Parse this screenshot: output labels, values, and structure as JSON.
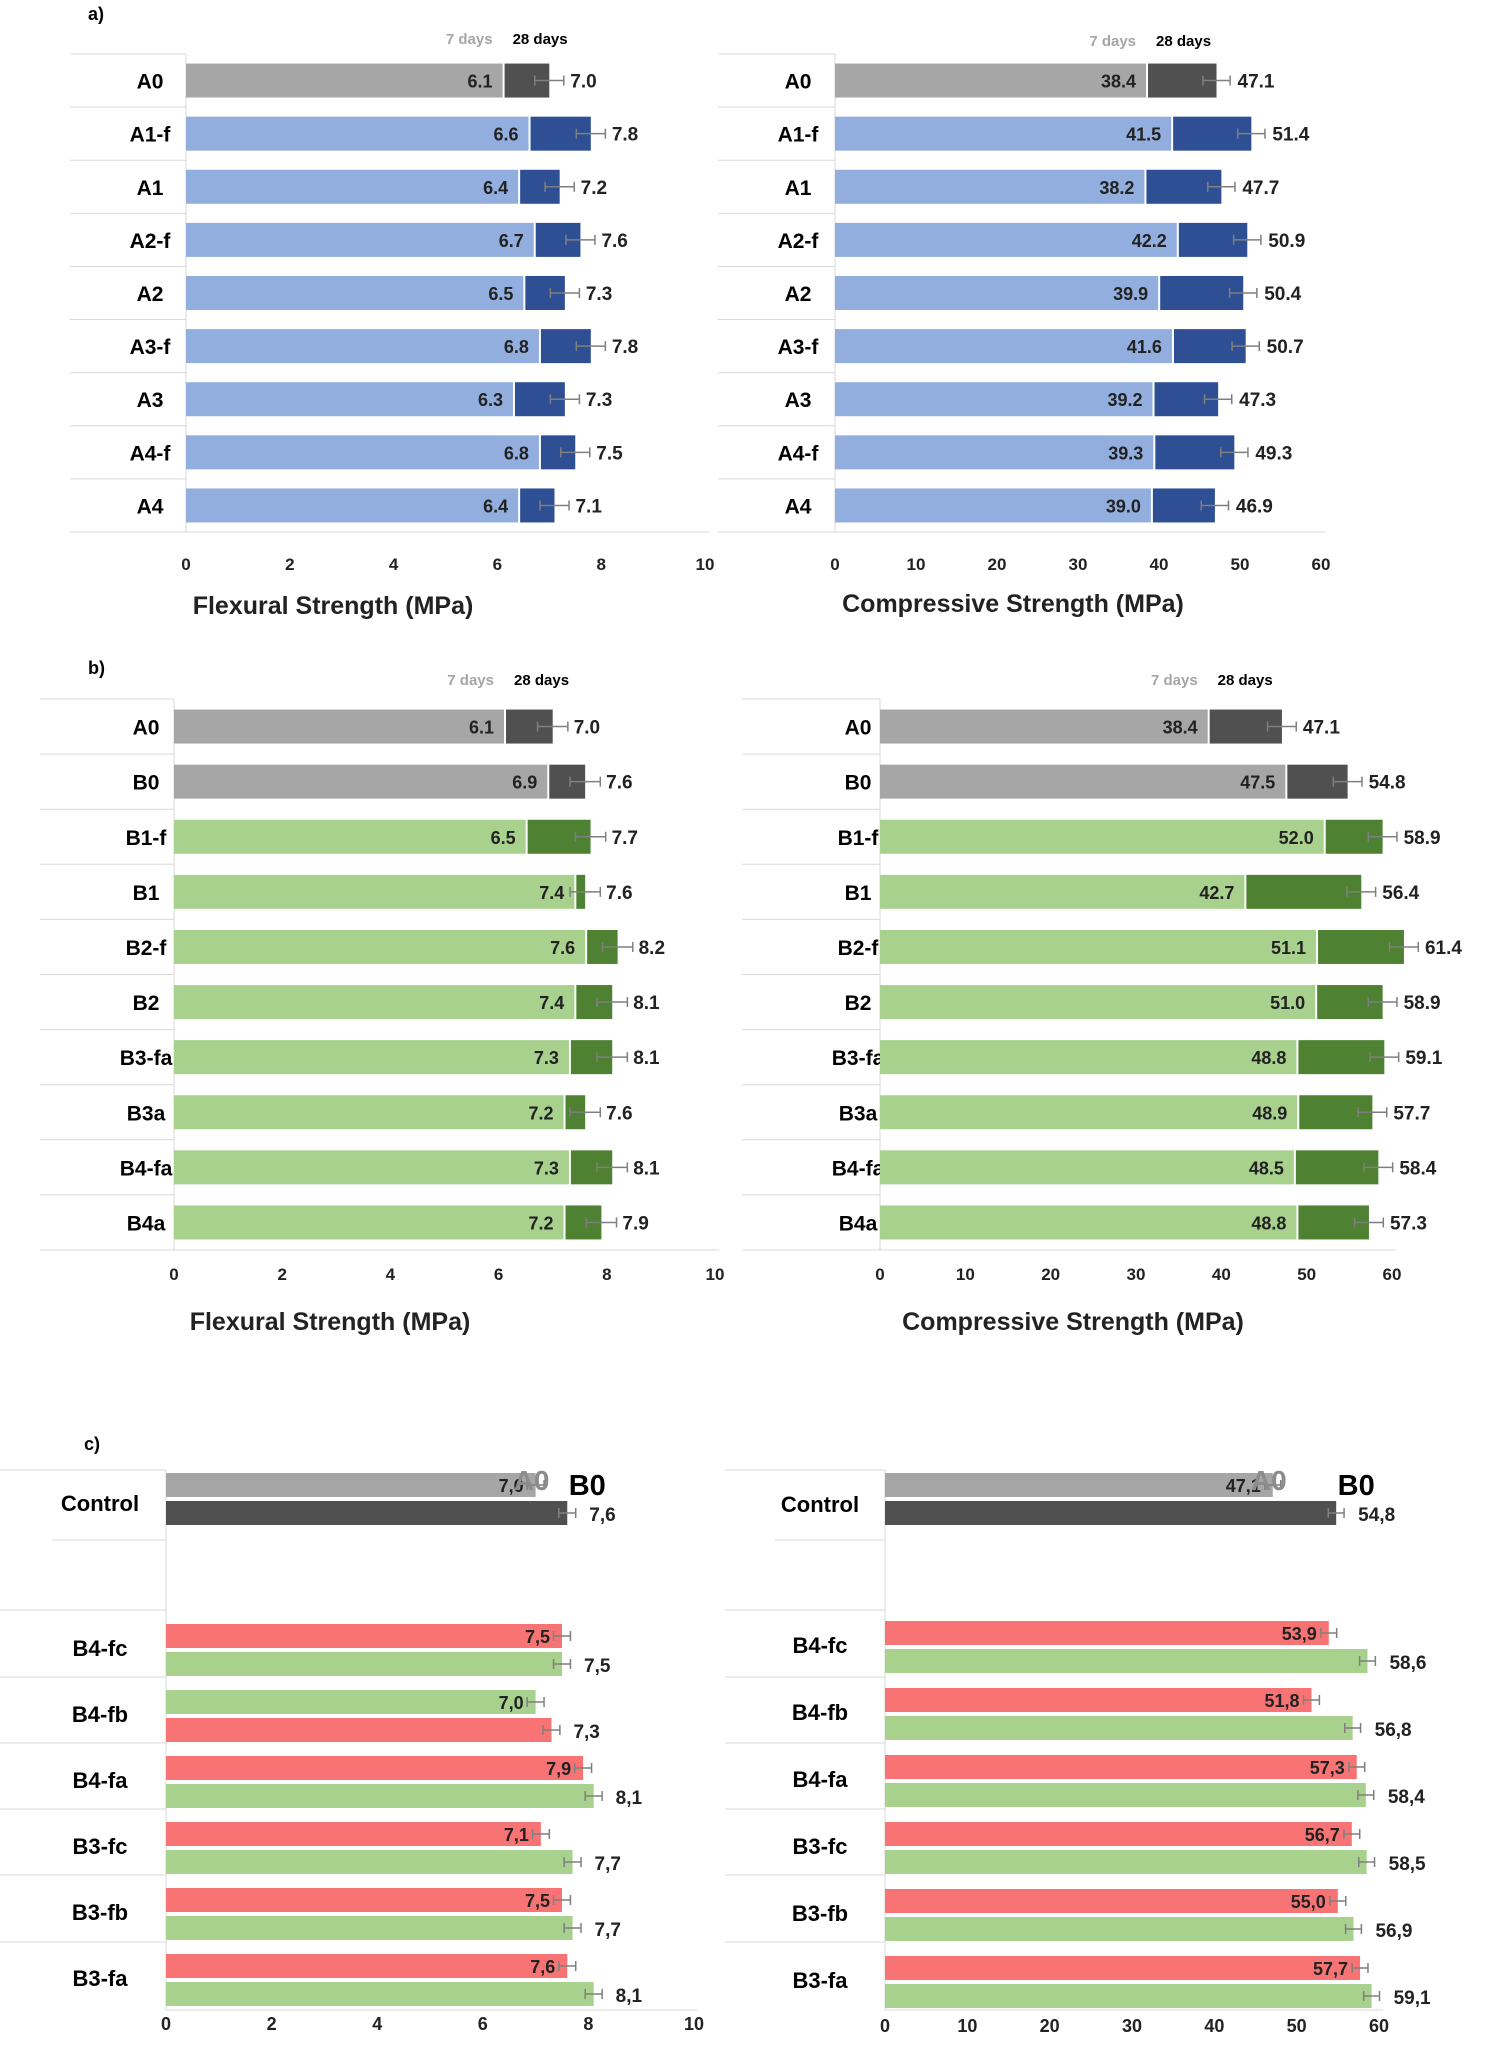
{
  "panel_labels": [
    "a)",
    "b)",
    "c)"
  ],
  "colors": {
    "a_7": "#92AEDE",
    "a_28": "#2E4F94",
    "ctrl_7": "#A6A6A6",
    "ctrl_28": "#505050",
    "b_7": "#A9D18E",
    "b_28": "#4F8132",
    "c_red": "#F87474",
    "c_green": "#A9D18E"
  },
  "chart_data": [
    {
      "type": "bar",
      "orientation": "horizontal",
      "panel": "a)",
      "legend": [
        "7 days",
        "28 days"
      ],
      "xlabel": "Flexural Strength (MPa)",
      "xlim": [
        0,
        10
      ],
      "xticks": [
        "0",
        "2",
        "4",
        "6",
        "8",
        "10"
      ],
      "categories": [
        "A0",
        "A1-f",
        "A1",
        "A2-f",
        "A2",
        "A3-f",
        "A3",
        "A4-f",
        "A4"
      ],
      "series": [
        {
          "name": "7 days",
          "values": [
            6.1,
            6.6,
            6.4,
            6.7,
            6.5,
            6.8,
            6.3,
            6.8,
            6.4
          ],
          "labels": [
            "6.1",
            "6.6",
            "6.4",
            "6.7",
            "6.5",
            "6.8",
            "6.3",
            "6.8",
            "6.4"
          ]
        },
        {
          "name": "28 days",
          "values": [
            7.0,
            7.8,
            7.2,
            7.6,
            7.3,
            7.8,
            7.3,
            7.5,
            7.1
          ],
          "labels": [
            "7.0",
            "7.8",
            "7.2",
            "7.6",
            "7.3",
            "7.8",
            "7.3",
            "7.5",
            "7.1"
          ]
        }
      ]
    },
    {
      "type": "bar",
      "orientation": "horizontal",
      "panel": "a)",
      "legend": [
        "7 days",
        "28 days"
      ],
      "xlabel": "Compressive Strength (MPa)",
      "xlim": [
        0,
        60
      ],
      "xticks": [
        "0",
        "10",
        "20",
        "30",
        "40",
        "50",
        "60"
      ],
      "categories": [
        "A0",
        "A1-f",
        "A1",
        "A2-f",
        "A2",
        "A3-f",
        "A3",
        "A4-f",
        "A4"
      ],
      "series": [
        {
          "name": "7 days",
          "values": [
            38.4,
            41.5,
            38.2,
            42.2,
            39.9,
            41.6,
            39.2,
            39.3,
            39.0
          ],
          "labels": [
            "38.4",
            "41.5",
            "38.2",
            "42.2",
            "39.9",
            "41.6",
            "39.2",
            "39.3",
            "39.0"
          ]
        },
        {
          "name": "28 days",
          "values": [
            47.1,
            51.4,
            47.7,
            50.9,
            50.4,
            50.7,
            47.3,
            49.3,
            46.9
          ],
          "labels": [
            "47.1",
            "51.4",
            "47.7",
            "50.9",
            "50.4",
            "50.7",
            "47.3",
            "49.3",
            "46.9"
          ]
        }
      ]
    },
    {
      "type": "bar",
      "orientation": "horizontal",
      "panel": "b)",
      "legend": [
        "7 days",
        "28 days"
      ],
      "xlabel": "Flexural Strength (MPa)",
      "xlim": [
        0,
        10
      ],
      "xticks": [
        "0",
        "2",
        "4",
        "6",
        "8",
        "10"
      ],
      "categories": [
        "A0",
        "B0",
        "B1-f",
        "B1",
        "B2-f",
        "B2",
        "B3-fa",
        "B3a",
        "B4-fa",
        "B4a"
      ],
      "series": [
        {
          "name": "7 days",
          "values": [
            6.1,
            6.9,
            6.5,
            7.4,
            7.6,
            7.4,
            7.3,
            7.2,
            7.3,
            7.2
          ],
          "labels": [
            "6.1",
            "6.9",
            "6.5",
            "7.4",
            "7.6",
            "7.4",
            "7.3",
            "7.2",
            "7.3",
            "7.2"
          ]
        },
        {
          "name": "28 days",
          "values": [
            7.0,
            7.6,
            7.7,
            7.6,
            8.2,
            8.1,
            8.1,
            7.6,
            8.1,
            7.9
          ],
          "labels": [
            "7.0",
            "7.6",
            "7.7",
            "7.6",
            "8.2",
            "8.1",
            "8.1",
            "7.6",
            "8.1",
            "7.9"
          ]
        }
      ]
    },
    {
      "type": "bar",
      "orientation": "horizontal",
      "panel": "b)",
      "legend": [
        "7 days",
        "28 days"
      ],
      "xlabel": "Compressive Strength (MPa)",
      "xlim": [
        0,
        60
      ],
      "xticks": [
        "0",
        "10",
        "20",
        "30",
        "40",
        "50",
        "60"
      ],
      "categories": [
        "A0",
        "B0",
        "B1-f",
        "B1",
        "B2-f",
        "B2",
        "B3-fa",
        "B3a",
        "B4-fa",
        "B4a"
      ],
      "series": [
        {
          "name": "7 days",
          "values": [
            38.4,
            47.5,
            52.0,
            42.7,
            51.1,
            51.0,
            48.8,
            48.9,
            48.5,
            48.8
          ],
          "labels": [
            "38.4",
            "47.5",
            "52.0",
            "42.7",
            "51.1",
            "51.0",
            "48.8",
            "48.9",
            "48.5",
            "48.8"
          ]
        },
        {
          "name": "28 days",
          "values": [
            47.1,
            54.8,
            58.9,
            56.4,
            61.4,
            58.9,
            59.1,
            57.7,
            58.4,
            57.3
          ],
          "labels": [
            "47.1",
            "54.8",
            "58.9",
            "56.4",
            "61.4",
            "58.9",
            "59.1",
            "57.7",
            "58.4",
            "57.3"
          ]
        }
      ]
    },
    {
      "type": "bar",
      "orientation": "horizontal",
      "panel": "c)",
      "group_names": [
        "A0",
        "B0"
      ],
      "xlim": [
        0,
        10
      ],
      "xticks": [
        "0",
        "2",
        "4",
        "6",
        "8",
        "10"
      ],
      "categories": [
        "Control",
        "B4-fc",
        "B4-fb",
        "B4-fa",
        "B3-fc",
        "B3-fb",
        "B3-fa"
      ],
      "series": [
        {
          "values": [
            7.0,
            7.5,
            7.0,
            7.9,
            7.1,
            7.5,
            7.6
          ],
          "labels": [
            "7,0",
            "7,5",
            "7,0",
            "7,9",
            "7,1",
            "7,5",
            "7,6"
          ]
        },
        {
          "values": [
            7.6,
            7.5,
            7.3,
            8.1,
            7.7,
            7.7,
            8.1
          ],
          "labels": [
            "7,6",
            "7,5",
            "7,3",
            "8,1",
            "7,7",
            "7,7",
            "8,1"
          ]
        }
      ]
    },
    {
      "type": "bar",
      "orientation": "horizontal",
      "panel": "c)",
      "group_names": [
        "A0",
        "B0"
      ],
      "xlim": [
        0,
        60
      ],
      "xticks": [
        "0",
        "10",
        "20",
        "30",
        "40",
        "50",
        "60"
      ],
      "categories": [
        "Control",
        "B4-fc",
        "B4-fb",
        "B4-fa",
        "B3-fc",
        "B3-fb",
        "B3-fa"
      ],
      "series": [
        {
          "values": [
            47.1,
            53.9,
            51.8,
            57.3,
            56.7,
            55.0,
            57.7
          ],
          "labels": [
            "47,1",
            "53,9",
            "51,8",
            "57,3",
            "56,7",
            "55,0",
            "57,7"
          ]
        },
        {
          "values": [
            54.8,
            58.6,
            56.8,
            58.4,
            58.5,
            56.9,
            59.1
          ],
          "labels": [
            "54,8",
            "58,6",
            "56,8",
            "58,4",
            "58,5",
            "56,9",
            "59,1"
          ]
        }
      ]
    }
  ]
}
